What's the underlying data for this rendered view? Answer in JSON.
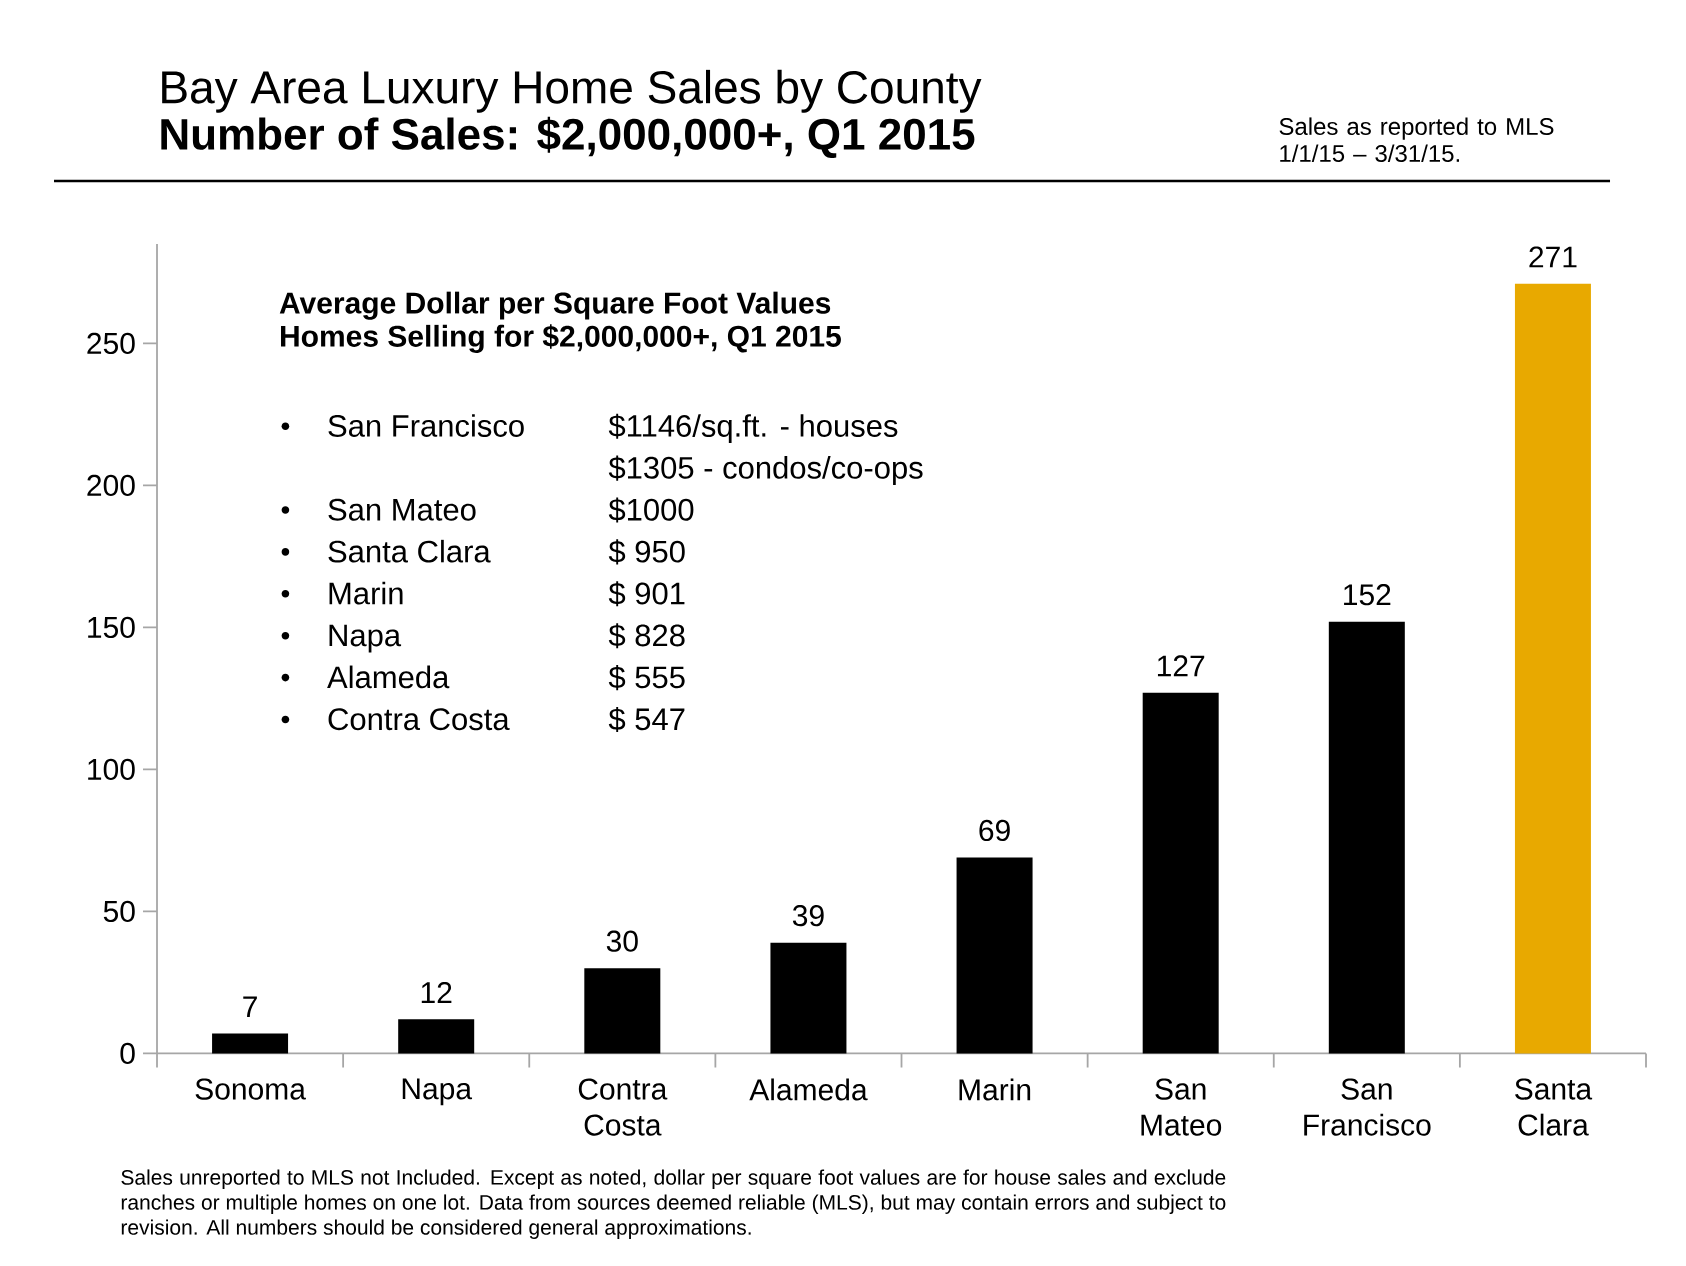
{
  "chart_data": [
    {
      "type": "bar",
      "title": "Bay Area Luxury Home Sales by County",
      "subtitle": "Number of Sales: $2,000,000+, Q1 2015",
      "categories": [
        "Sonoma",
        "Napa",
        "Contra Costa",
        "Alameda",
        "Marin",
        "San Mateo",
        "San Francisco",
        "Santa Clara"
      ],
      "values": [
        7,
        12,
        30,
        39,
        69,
        127,
        152,
        271
      ],
      "colors": [
        "#000000",
        "#000000",
        "#000000",
        "#000000",
        "#000000",
        "#000000",
        "#000000",
        "#e8a900"
      ],
      "ylim": [
        0,
        285
      ],
      "yticks": [
        0,
        50,
        100,
        150,
        200,
        250
      ],
      "data_labels": true,
      "annotations": [
        "Sales as reported to MLS 1/1/15 – 3/31/15.",
        "Sales unreported to MLS not Included. Except as noted, dollar per square foot values are for house sales and exclude ranches or multiple homes on one lot. Data from sources deemed reliable (MLS), but may contain errors and subject to revision. All numbers should be considered general approximations."
      ]
    },
    {
      "type": "other",
      "title": "Average Dollar per Square Foot Values",
      "subtitle": "Homes Selling for $2,000,000+, Q1 2015",
      "categories": [
        "San Francisco",
        null,
        "San Mateo",
        "Santa Clara",
        "Marin",
        "Napa",
        "Alameda",
        "Contra Costa"
      ],
      "value_labels": [
        "$1146/sq.ft. - houses",
        "$1305 - condos/co-ops",
        "$1000",
        "$ 950",
        "$ 901",
        "$ 828",
        "$ 555",
        "$ 547"
      ]
    }
  ]
}
